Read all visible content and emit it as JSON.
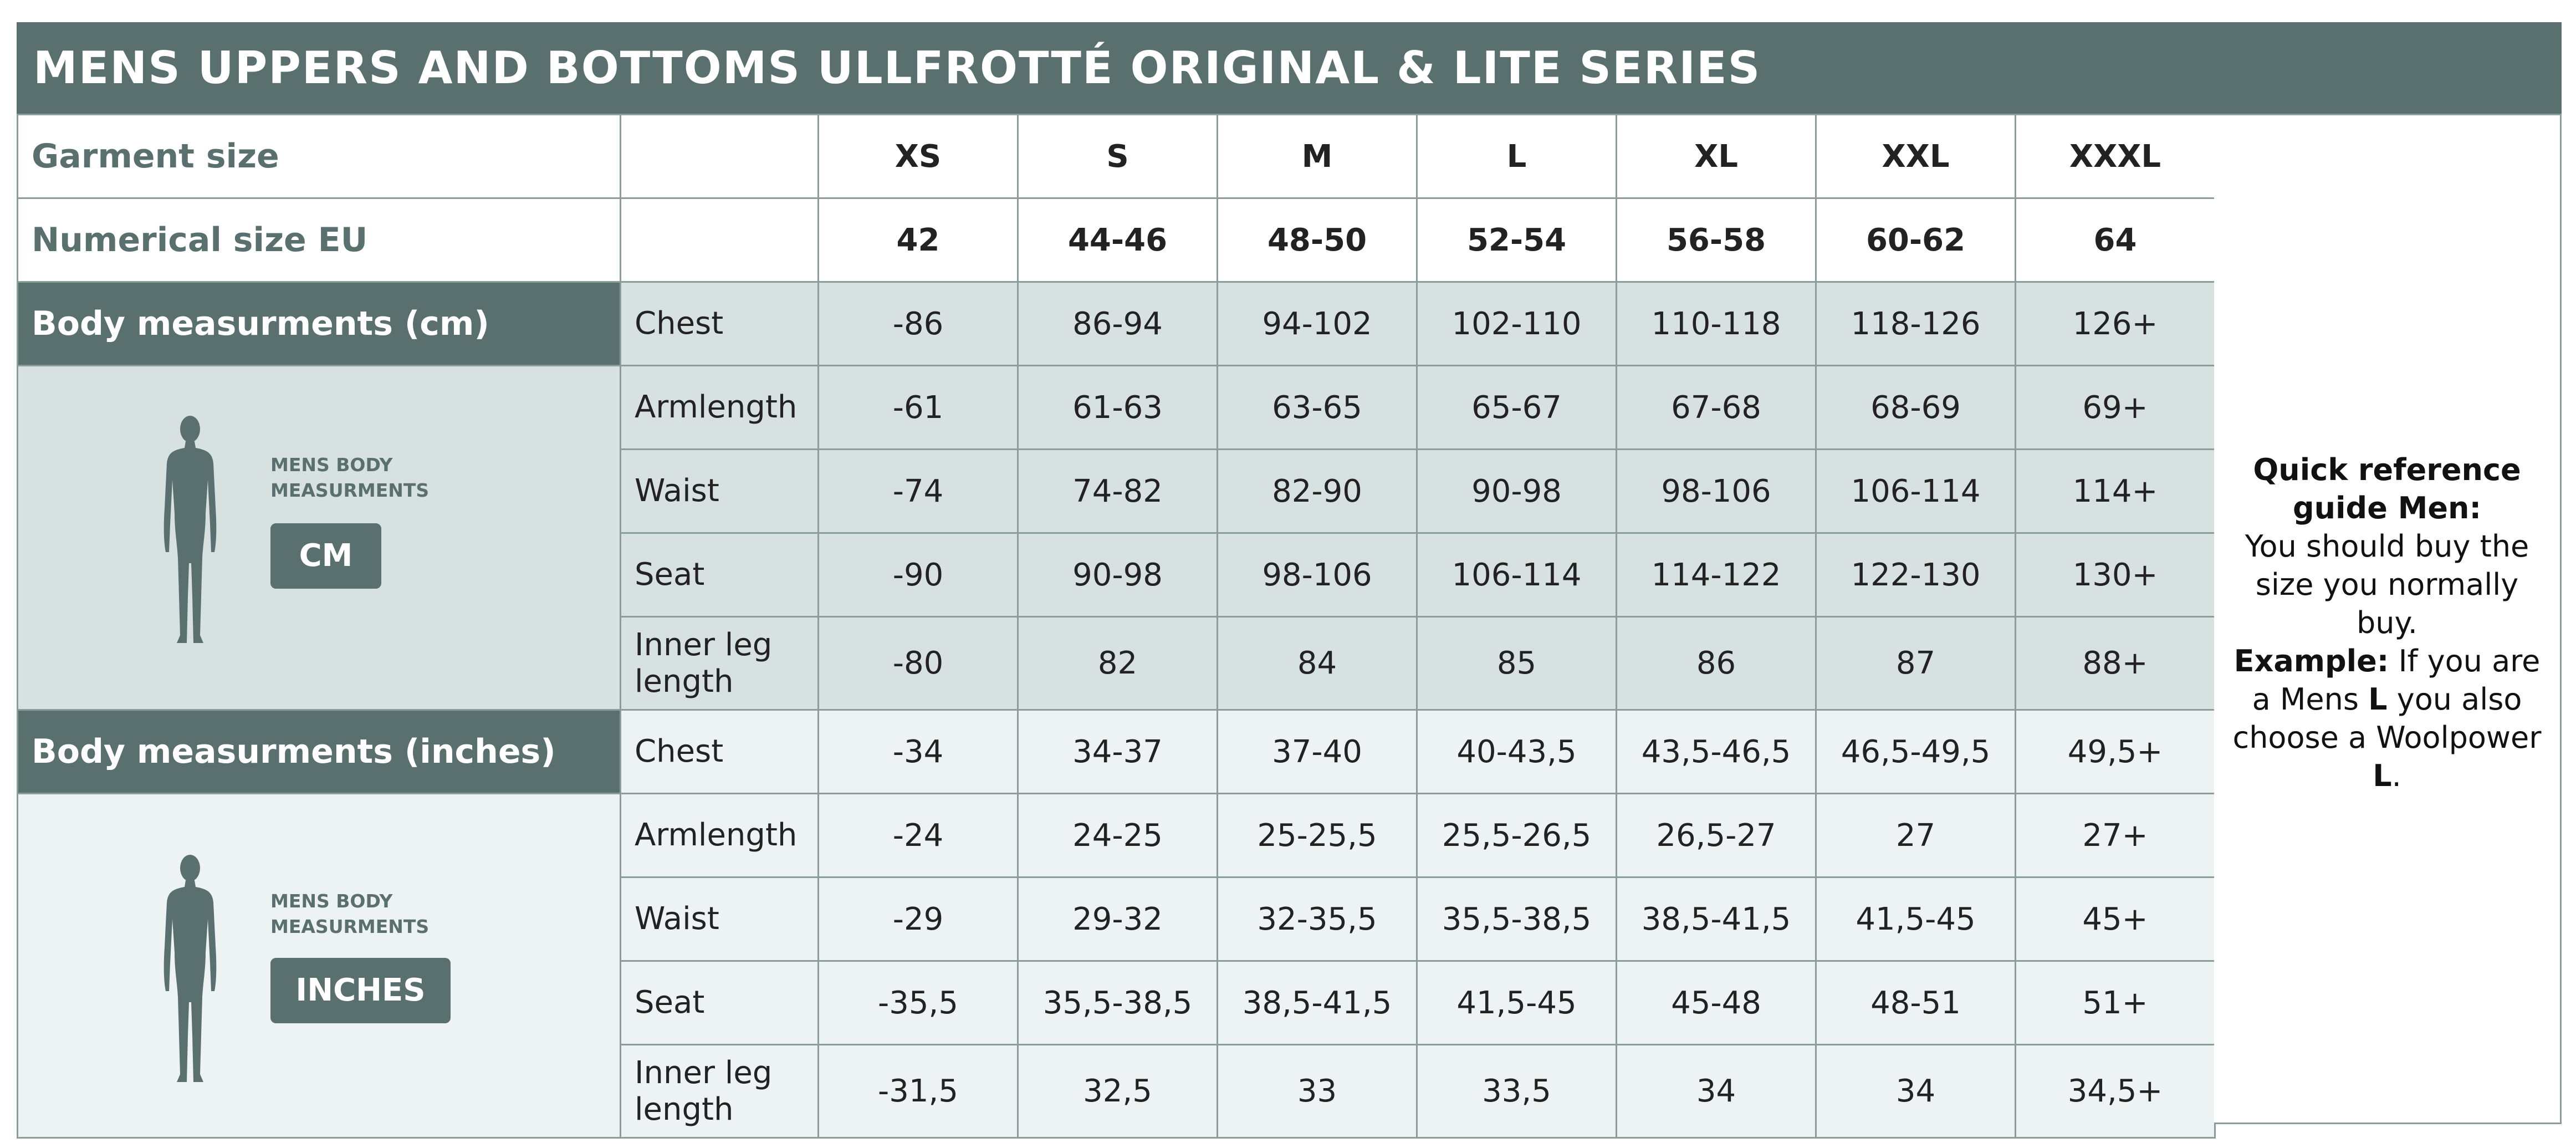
{
  "title": "MENS UPPERS AND BOTTOMS ULLFROTTÉ ORIGINAL & LITE SERIES",
  "header": {
    "garment_label": "Garment size",
    "garment_sizes": [
      "XS",
      "S",
      "M",
      "L",
      "XL",
      "XXL",
      "XXXL"
    ],
    "numerical_label": "Numerical size EU",
    "numerical_sizes": [
      "42",
      "44-46",
      "48-50",
      "52-54",
      "56-58",
      "60-62",
      "64"
    ]
  },
  "cm_section": {
    "label": "Body measurments (cm)",
    "caption_line1": "MENS BODY",
    "caption_line2": "MEASURMENTS",
    "badge": "CM",
    "rows": [
      {
        "label": "Chest",
        "values": [
          "-86",
          "86-94",
          "94-102",
          "102-110",
          "110-118",
          "118-126",
          "126+"
        ]
      },
      {
        "label": "Armlength",
        "values": [
          "-61",
          "61-63",
          "63-65",
          "65-67",
          "67-68",
          "68-69",
          "69+"
        ]
      },
      {
        "label": "Waist",
        "values": [
          "-74",
          "74-82",
          "82-90",
          "90-98",
          "98-106",
          "106-114",
          "114+"
        ]
      },
      {
        "label": "Seat",
        "values": [
          "-90",
          "90-98",
          "98-106",
          "106-114",
          "114-122",
          "122-130",
          "130+"
        ]
      },
      {
        "label": "Inner leg length",
        "values": [
          "-80",
          "82",
          "84",
          "85",
          "86",
          "87",
          "88+"
        ]
      }
    ]
  },
  "inch_section": {
    "label": "Body measurments (inches)",
    "caption_line1": "MENS BODY",
    "caption_line2": "MEASURMENTS",
    "badge": "INCHES",
    "rows": [
      {
        "label": "Chest",
        "values": [
          "-34",
          "34-37",
          "37-40",
          "40-43,5",
          "43,5-46,5",
          "46,5-49,5",
          "49,5+"
        ]
      },
      {
        "label": "Armlength",
        "values": [
          "-24",
          "24-25",
          "25-25,5",
          "25,5-26,5",
          "26,5-27",
          "27",
          "27+"
        ]
      },
      {
        "label": "Waist",
        "values": [
          "-29",
          "29-32",
          "32-35,5",
          "35,5-38,5",
          "38,5-41,5",
          "41,5-45",
          "45+"
        ]
      },
      {
        "label": "Seat",
        "values": [
          "-35,5",
          "35,5-38,5",
          "38,5-41,5",
          "41,5-45",
          "45-48",
          "48-51",
          "51+"
        ]
      },
      {
        "label": "Inner leg length",
        "values": [
          "-31,5",
          "32,5",
          "33",
          "33,5",
          "34",
          "34",
          "34,5+"
        ]
      }
    ]
  },
  "quick_reference": {
    "heading": "Quick reference guide Men:",
    "body": "You should buy the size you normally buy.",
    "example_label": "Example:",
    "example_text_1": "If you are a Mens",
    "example_size_1": "L",
    "example_text_2": "you also choose a Woolpower",
    "example_size_2": "L",
    "example_end": "."
  },
  "colors": {
    "header_bar": "#5a706f",
    "cm_section_bg": "#d6e1e0",
    "inch_section_bg": "#edf2f2",
    "grid_line": "#8a9d9b"
  },
  "icons": {
    "body_figure": "human-silhouette-icon"
  }
}
